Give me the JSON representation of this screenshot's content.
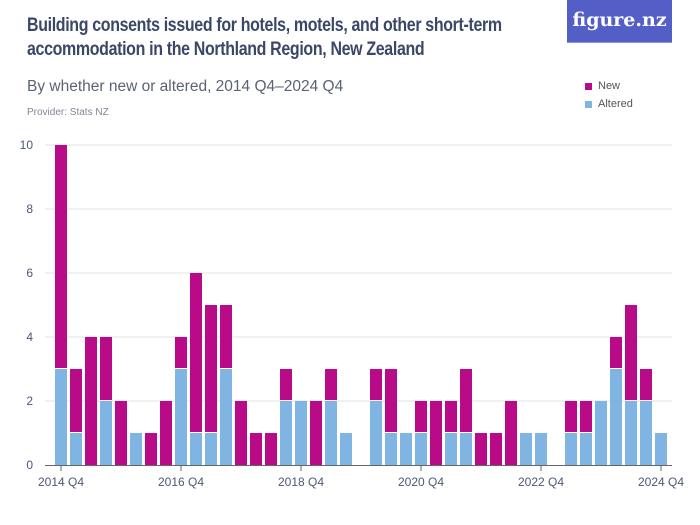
{
  "header": {
    "logo": "figure.nz"
  },
  "chart_data": {
    "type": "bar",
    "stacked": true,
    "title": "Building consents issued for hotels, motels, and other short-term accommodation in the Northland Region, New Zealand",
    "subtitle": "By whether new or altered, 2014 Q4–2024 Q4",
    "provider": "Provider: Stats NZ",
    "xlabel": "",
    "ylabel": "",
    "ylim": [
      0,
      10
    ],
    "yticks": [
      0,
      2,
      4,
      6,
      8,
      10
    ],
    "grid": true,
    "legend_position": "top-right",
    "xtick_labels": [
      "2014 Q4",
      "2016 Q4",
      "2018 Q4",
      "2020 Q4",
      "2022 Q4",
      "2024 Q4"
    ],
    "categories": [
      "2014 Q4",
      "2015 Q1",
      "2015 Q2",
      "2015 Q3",
      "2015 Q4",
      "2016 Q1",
      "2016 Q2",
      "2016 Q3",
      "2016 Q4",
      "2017 Q1",
      "2017 Q2",
      "2017 Q3",
      "2017 Q4",
      "2018 Q1",
      "2018 Q2",
      "2018 Q3",
      "2018 Q4",
      "2019 Q1",
      "2019 Q2",
      "2019 Q3",
      "2019 Q4",
      "2020 Q1",
      "2020 Q2",
      "2020 Q3",
      "2020 Q4",
      "2021 Q1",
      "2021 Q2",
      "2021 Q3",
      "2021 Q4",
      "2022 Q1",
      "2022 Q2",
      "2022 Q3",
      "2022 Q4",
      "2023 Q1",
      "2023 Q2",
      "2023 Q3",
      "2023 Q4",
      "2024 Q1",
      "2024 Q2",
      "2024 Q3",
      "2024 Q4"
    ],
    "series": [
      {
        "name": "New",
        "color": "#b90b87",
        "values": [
          7,
          2,
          4,
          2,
          2,
          0,
          1,
          2,
          1,
          5,
          4,
          2,
          2,
          1,
          1,
          1,
          0,
          2,
          1,
          0,
          0,
          1,
          2,
          0,
          1,
          2,
          1,
          2,
          1,
          1,
          2,
          0,
          0,
          0,
          1,
          1,
          0,
          1,
          3,
          1,
          0
        ]
      },
      {
        "name": "Altered",
        "color": "#7fb4e3",
        "values": [
          3,
          1,
          0,
          2,
          0,
          1,
          0,
          0,
          3,
          1,
          1,
          3,
          0,
          0,
          0,
          2,
          2,
          0,
          2,
          1,
          0,
          2,
          1,
          1,
          1,
          0,
          1,
          1,
          0,
          0,
          0,
          1,
          1,
          0,
          1,
          1,
          2,
          3,
          2,
          2,
          1
        ]
      }
    ]
  }
}
